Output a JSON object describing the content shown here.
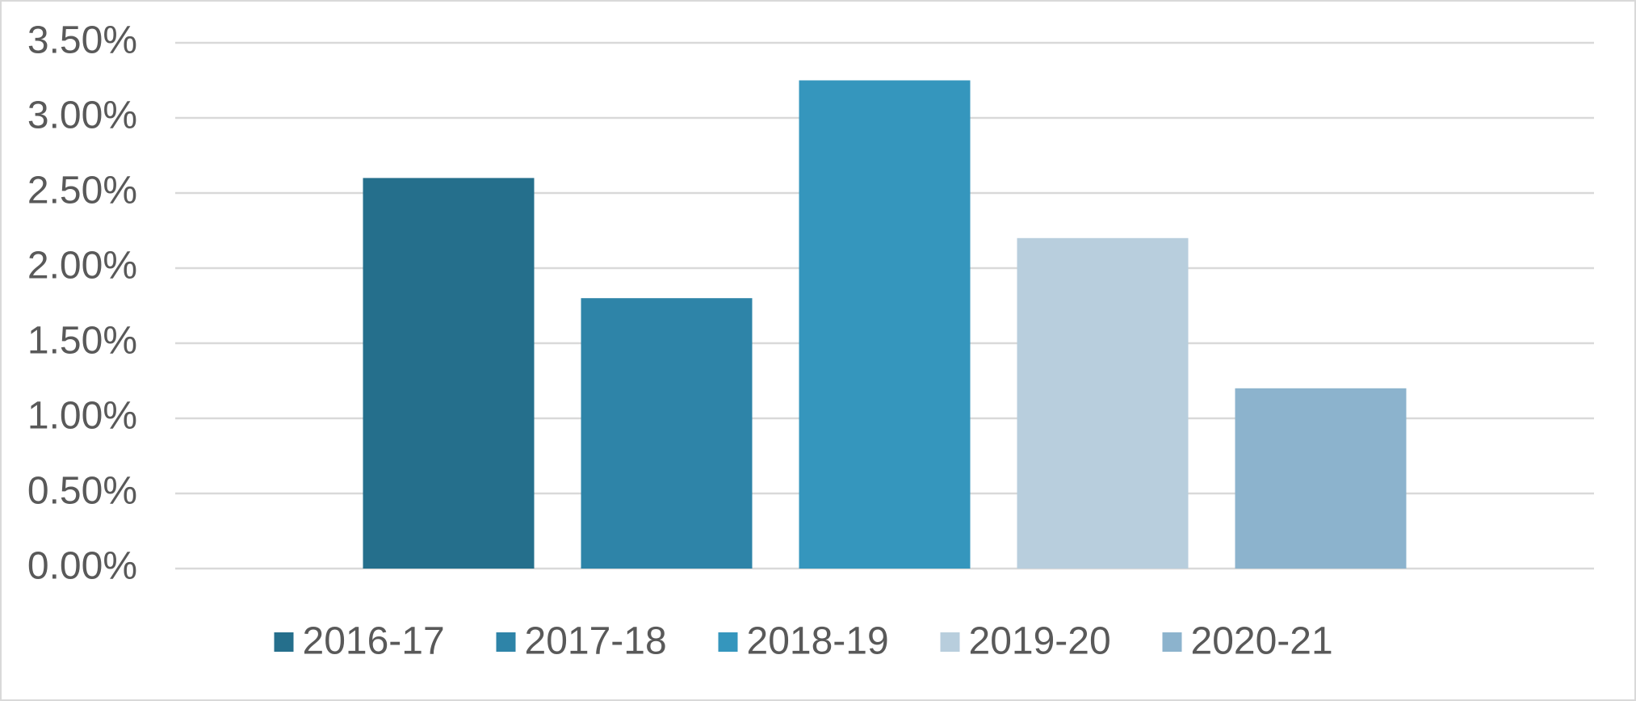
{
  "chart_data": {
    "type": "bar",
    "categories": [
      null
    ],
    "series": [
      {
        "name": "2016-17",
        "color": "#256f8c",
        "values": [
          2.6
        ]
      },
      {
        "name": "2017-18",
        "color": "#2e84a8",
        "values": [
          1.8
        ]
      },
      {
        "name": "2018-19",
        "color": "#3596bd",
        "values": [
          3.25
        ]
      },
      {
        "name": "2019-20",
        "color": "#b8cedd",
        "values": [
          2.2
        ]
      },
      {
        "name": "2020-21",
        "color": "#8cb3cd",
        "values": [
          1.2
        ]
      }
    ],
    "ylim": [
      0,
      3.5
    ],
    "yticks": [
      {
        "value": 0,
        "label": "0.00%"
      },
      {
        "value": 0.5,
        "label": "0.50%"
      },
      {
        "value": 1,
        "label": "1.00%"
      },
      {
        "value": 1.5,
        "label": "1.50%"
      },
      {
        "value": 2,
        "label": "2.00%"
      },
      {
        "value": 2.5,
        "label": "2.50%"
      },
      {
        "value": 3,
        "label": "3.00%"
      },
      {
        "value": 3.5,
        "label": "3.50%"
      }
    ],
    "grid": true,
    "legend": "bottom"
  }
}
